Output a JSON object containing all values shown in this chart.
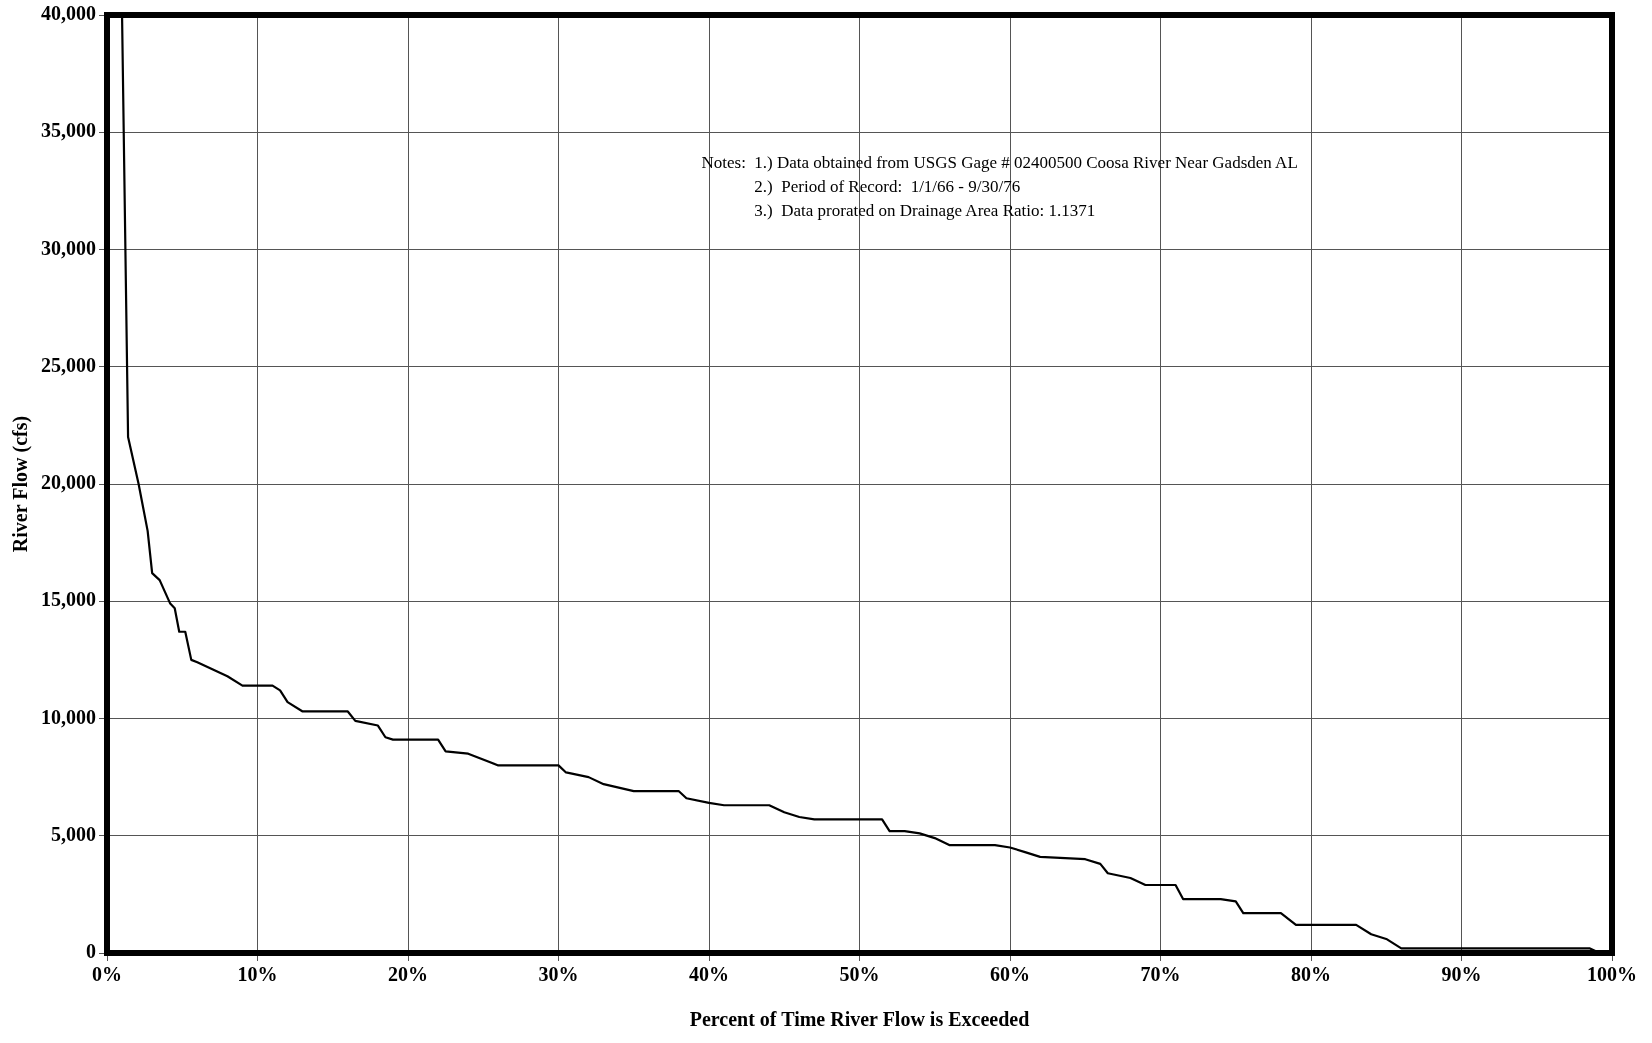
{
  "chart_data": {
    "type": "line",
    "xlabel": "Percent of Time River Flow is Exceeded",
    "ylabel": "River Flow (cfs)",
    "annotations": [
      "Notes:  1.) Data obtained from USGS Gage # 02400500 Coosa River Near Gadsden AL",
      "2.)  Period of Record:  1/1/66 - 9/30/76",
      "3.)  Data prorated on Drainage Area Ratio: 1.1371"
    ],
    "x": [
      1.0,
      1.4,
      2.1,
      2.7,
      3.0,
      3.5,
      4.2,
      4.5,
      4.8,
      5.2,
      5.6,
      6,
      7,
      8,
      9,
      11,
      11.5,
      12,
      13,
      16,
      16.5,
      18,
      18.5,
      19,
      22,
      22.5,
      24,
      26,
      30,
      30.5,
      32,
      33,
      35,
      38,
      38.5,
      40,
      41,
      44,
      45,
      46,
      47,
      51.5,
      52,
      53,
      54,
      55,
      56,
      59,
      60,
      61,
      62,
      65,
      66,
      66.5,
      68,
      69,
      71,
      71.5,
      74,
      75,
      75.5,
      78,
      79,
      83,
      84,
      85,
      86,
      98.5,
      99
    ],
    "series": [
      {
        "color": "#000000",
        "values": [
          40000,
          22000,
          20000,
          18000,
          16200,
          15900,
          14900,
          14700,
          13700,
          13700,
          12500,
          12400,
          12100,
          11800,
          11400,
          11400,
          11200,
          10700,
          10300,
          10300,
          9900,
          9700,
          9200,
          9100,
          9100,
          8600,
          8500,
          8000,
          8000,
          7700,
          7500,
          7200,
          6900,
          6900,
          6600,
          6400,
          6300,
          6300,
          6000,
          5800,
          5700,
          5700,
          5200,
          5200,
          5100,
          4900,
          4600,
          4600,
          4500,
          4300,
          4100,
          4000,
          3800,
          3400,
          3200,
          2900,
          2900,
          2300,
          2300,
          2200,
          1700,
          1700,
          1200,
          1200,
          800,
          600,
          200,
          200,
          50
        ]
      }
    ],
    "xlim": [
      0,
      100
    ],
    "xticks": [
      {
        "value": 0,
        "label": "0%"
      },
      {
        "value": 10,
        "label": "10%"
      },
      {
        "value": 20,
        "label": "20%"
      },
      {
        "value": 30,
        "label": "30%"
      },
      {
        "value": 40,
        "label": "40%"
      },
      {
        "value": 50,
        "label": "50%"
      },
      {
        "value": 60,
        "label": "60%"
      },
      {
        "value": 70,
        "label": "70%"
      },
      {
        "value": 80,
        "label": "80%"
      },
      {
        "value": 90,
        "label": "90%"
      },
      {
        "value": 100,
        "label": "100%"
      }
    ],
    "ylim": [
      0,
      40000
    ],
    "yticks": [
      {
        "value": 0,
        "label": "0"
      },
      {
        "value": 5000,
        "label": "5,000"
      },
      {
        "value": 10000,
        "label": "10,000"
      },
      {
        "value": 15000,
        "label": "15,000"
      },
      {
        "value": 20000,
        "label": "20,000"
      },
      {
        "value": 25000,
        "label": "25,000"
      },
      {
        "value": 30000,
        "label": "30,000"
      },
      {
        "value": 35000,
        "label": "35,000"
      },
      {
        "value": 40000,
        "label": "40,000"
      }
    ],
    "grid": true,
    "legend": false,
    "marker": "none",
    "line_style": "solid"
  }
}
